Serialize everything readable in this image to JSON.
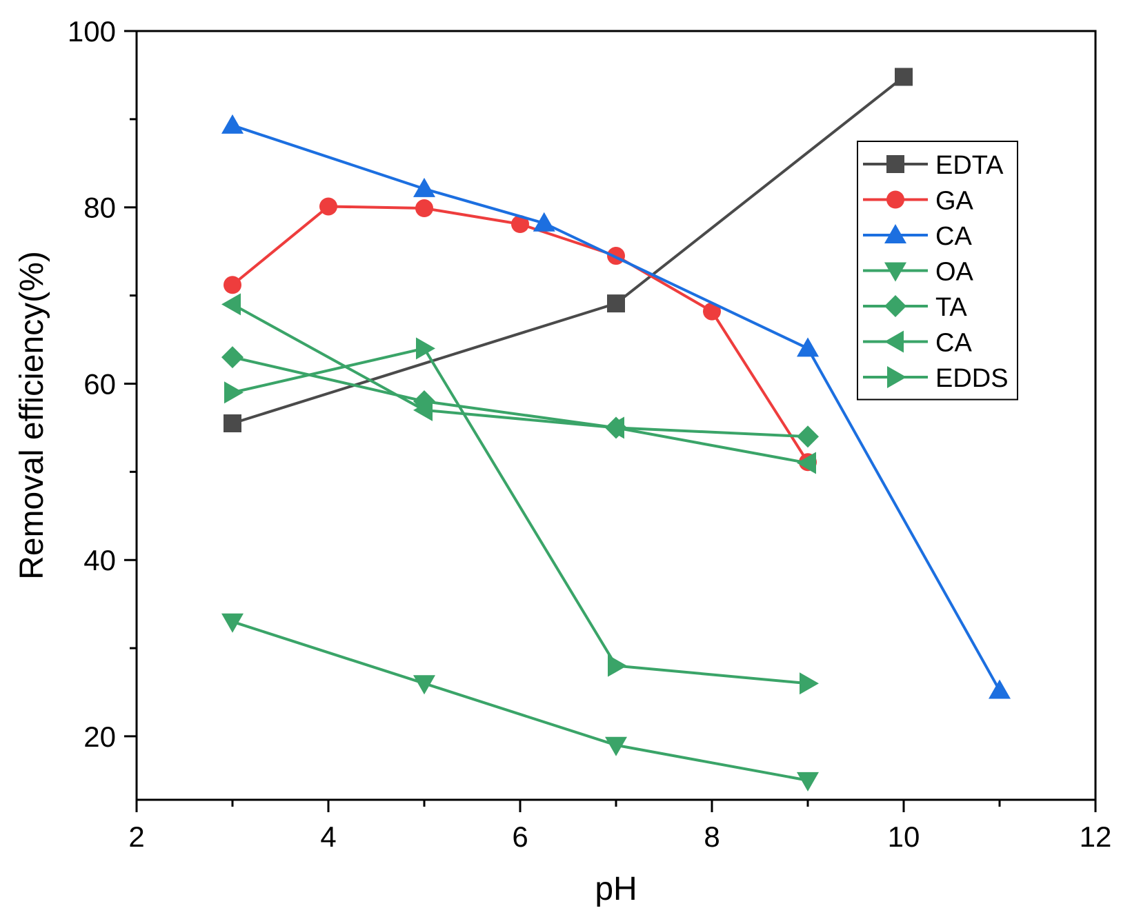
{
  "chart_data": {
    "type": "line",
    "title": "",
    "xlabel": "pH",
    "ylabel": "Removal efficiency(%)",
    "xlim": [
      2,
      12
    ],
    "ylim": [
      12.8,
      100
    ],
    "xticks": [
      "2",
      "4",
      "6",
      "8",
      "10",
      "12"
    ],
    "yticks": [
      "20",
      "40",
      "60",
      "80",
      "100"
    ],
    "grid": false,
    "legend_position": "top-right",
    "series": [
      {
        "name": "EDTA",
        "color": "#4a4a4a",
        "marker": "square",
        "x": [
          3,
          7,
          10
        ],
        "y": [
          55.5,
          69.1,
          94.8
        ]
      },
      {
        "name": "GA",
        "color": "#ee3d3d",
        "marker": "circle",
        "x": [
          3,
          4,
          5,
          6,
          7,
          8,
          9
        ],
        "y": [
          71.2,
          80.1,
          79.9,
          78.1,
          74.5,
          68.2,
          51.1
        ]
      },
      {
        "name": "CA",
        "color": "#1c6fe0",
        "marker": "triangle-up",
        "x": [
          3,
          5,
          6.25,
          9,
          11
        ],
        "y": [
          89.3,
          82.1,
          78.2,
          64.0,
          25.2
        ]
      },
      {
        "name": "OA",
        "color": "#3aa468",
        "marker": "triangle-down",
        "x": [
          3,
          5,
          7,
          9
        ],
        "y": [
          33,
          26,
          19,
          15
        ]
      },
      {
        "name": "TA",
        "color": "#3aa468",
        "marker": "diamond",
        "x": [
          3,
          5,
          7,
          9
        ],
        "y": [
          63,
          58,
          55,
          54
        ]
      },
      {
        "name": "CA",
        "color": "#3aa468",
        "marker": "triangle-left",
        "x": [
          3,
          5,
          7,
          9
        ],
        "y": [
          69,
          57,
          55,
          51
        ]
      },
      {
        "name": "EDDS",
        "color": "#3aa468",
        "marker": "triangle-right",
        "x": [
          3,
          5,
          7,
          9
        ],
        "y": [
          59,
          64,
          28,
          26
        ]
      }
    ]
  }
}
